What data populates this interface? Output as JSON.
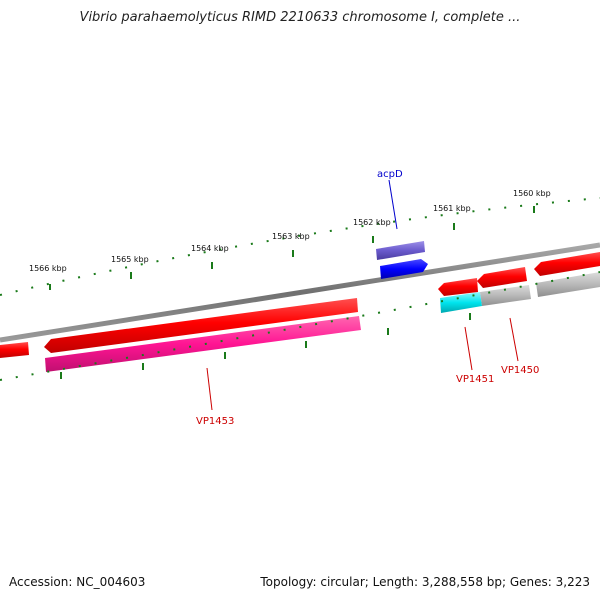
{
  "title": "Vibrio parahaemolyticus RIMD 2210633 chromosome I, complete ...",
  "footer": {
    "accession": "Accession: NC_004603",
    "summary": "Topology: circular; Length: 3,288,558 bp; Genes: 3,223"
  },
  "scale_labels": [
    "1566 kbp",
    "1565 kbp",
    "1564 kbp",
    "1563 kbp",
    "1562 kbp",
    "1561 kbp",
    "1560 kbp"
  ],
  "gene_labels": {
    "acpD": "acpD",
    "VP1453": "VP1453",
    "VP1451": "VP1451",
    "VP1450": "VP1450"
  },
  "colors": {
    "backbone": "#808080",
    "cds": "#ff0000",
    "gene_pink": "#ff1493",
    "gene_cyan": "#00e5ee",
    "gene_blue": "#0000ff",
    "gene_purple": "#6a5acd",
    "gene_grey": "#b0b0b0",
    "tick": "#1a7a1a",
    "label_red": "#cc0000",
    "label_blue": "#0000cc"
  }
}
